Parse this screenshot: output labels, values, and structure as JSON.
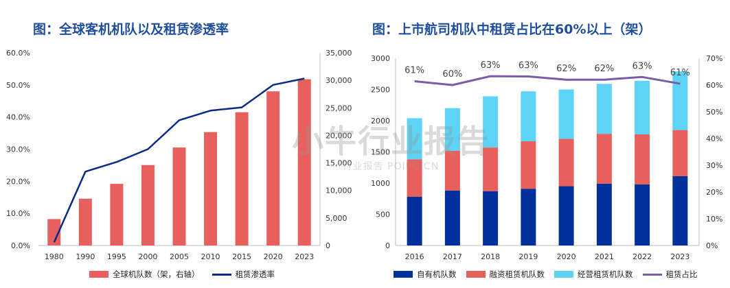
{
  "left_panel": {
    "title": "图：全球客机机队以及租赁渗透率"
  },
  "right_panel": {
    "title": "图：上市航司机队中租赁占比在60%以上（架）"
  },
  "watermark": {
    "main": "小牛行业报告",
    "sub": "行业报告 POIPO.CN"
  },
  "chart_data": [
    {
      "type": "bar",
      "categories": [
        "1980",
        "1990",
        "1995",
        "2000",
        "2005",
        "2010",
        "2015",
        "2020",
        "2023"
      ],
      "series": [
        {
          "name": "全球机队数（架，右轴）",
          "type": "bar",
          "axis": "right",
          "color": "#e8605e",
          "values": [
            4800,
            8500,
            11200,
            14600,
            17800,
            20600,
            24200,
            28000,
            30200
          ]
        },
        {
          "name": "租赁渗透率",
          "type": "line",
          "axis": "left",
          "color": "#0a2a8a",
          "values": [
            0.01,
            0.23,
            0.26,
            0.3,
            0.39,
            0.42,
            0.43,
            0.5,
            0.52
          ]
        }
      ],
      "y_left": {
        "min": 0,
        "max": 0.6,
        "ticks": [
          "0.0%",
          "10.0%",
          "20.0%",
          "30.0%",
          "40.0%",
          "50.0%",
          "60.0%"
        ]
      },
      "y_right": {
        "min": 0,
        "max": 35000,
        "ticks": [
          "0",
          "5,000",
          "10,000",
          "15,000",
          "20,000",
          "25,000",
          "30,000",
          "35,000"
        ]
      },
      "legend_position": "bottom"
    },
    {
      "type": "bar",
      "stacked": true,
      "categories": [
        "2016",
        "2017",
        "2018",
        "2019",
        "2020",
        "2021",
        "2022",
        "2023"
      ],
      "series": [
        {
          "name": "自有机队数",
          "type": "bar",
          "axis": "left",
          "color": "#00309a",
          "values": [
            780,
            880,
            870,
            910,
            950,
            990,
            980,
            1110
          ]
        },
        {
          "name": "融资租赁机队数",
          "type": "bar",
          "axis": "left",
          "color": "#e8605e",
          "values": [
            600,
            640,
            700,
            760,
            760,
            800,
            800,
            740
          ]
        },
        {
          "name": "经营租赁机队数",
          "type": "bar",
          "axis": "left",
          "color": "#5dd4f5",
          "values": [
            660,
            680,
            820,
            800,
            790,
            800,
            860,
            940
          ]
        },
        {
          "name": "租赁占比",
          "type": "line",
          "axis": "right",
          "color": "#7b5ca8",
          "values": [
            0.614,
            0.6,
            0.633,
            0.632,
            0.62,
            0.62,
            0.63,
            0.605
          ],
          "labels": [
            "61%",
            "60%",
            "63%",
            "63%",
            "62%",
            "62%",
            "63%",
            "61%"
          ]
        }
      ],
      "y_left": {
        "min": 0,
        "max": 3000,
        "ticks": [
          "0",
          "500",
          "1000",
          "1500",
          "2000",
          "2500",
          "3000"
        ]
      },
      "y_right": {
        "min": 0,
        "max": 0.7,
        "ticks": [
          "0%",
          "10%",
          "20%",
          "30%",
          "40%",
          "50%",
          "60%",
          "70%"
        ]
      },
      "legend_position": "bottom"
    }
  ]
}
